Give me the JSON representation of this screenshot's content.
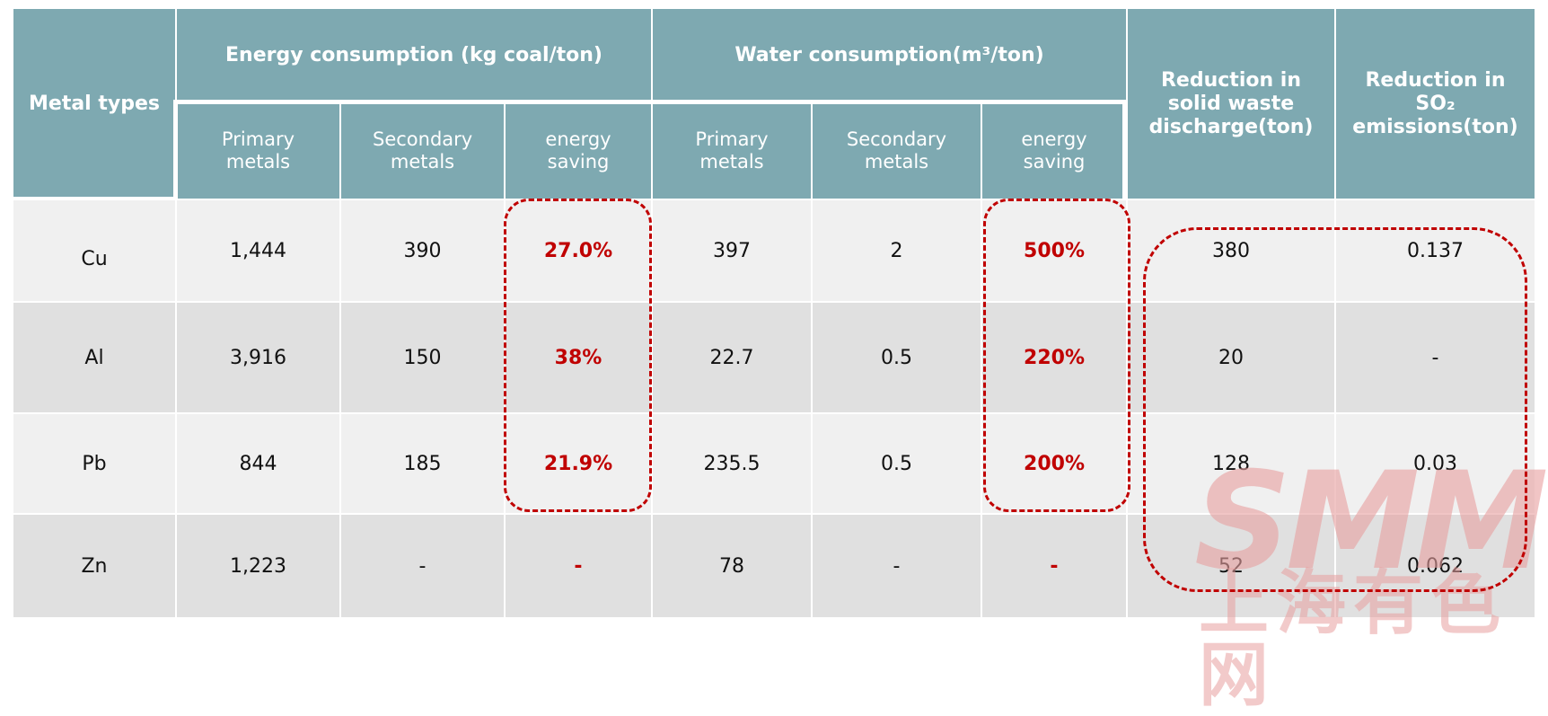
{
  "headers": {
    "metal_types": "Metal types",
    "energy_group": "Energy consumption  (kg coal/ton)",
    "water_group": "Water consumption(m³/ton)",
    "solid_waste": "Reduction in solid waste discharge(ton)",
    "so2": "Reduction in SO₂ emissions(ton)",
    "energy_sub": [
      "Primary metals",
      "Secondary metals",
      "energy saving"
    ],
    "water_sub": [
      "Primary metals",
      "Secondary metals",
      "energy saving"
    ]
  },
  "rows": [
    {
      "metal": "Cu",
      "energy_primary": "1,444",
      "energy_secondary": "390",
      "energy_saving": "27.0%",
      "water_primary": "397",
      "water_secondary": "2",
      "water_saving": "500%",
      "solid_waste": "380",
      "so2": "0.137"
    },
    {
      "metal": "Al",
      "energy_primary": "3,916",
      "energy_secondary": "150",
      "energy_saving": "38%",
      "water_primary": "22.7",
      "water_secondary": "0.5",
      "water_saving": "220%",
      "solid_waste": "20",
      "so2": "-"
    },
    {
      "metal": "Pb",
      "energy_primary": "844",
      "energy_secondary": "185",
      "energy_saving": "21.9%",
      "water_primary": "235.5",
      "water_secondary": "0.5",
      "water_saving": "200%",
      "solid_waste": "128",
      "so2": "0.03"
    },
    {
      "metal": "Zn",
      "energy_primary": "1,223",
      "energy_secondary": "-",
      "energy_saving": "-",
      "water_primary": "78",
      "water_secondary": "-",
      "water_saving": "-",
      "solid_waste": "52",
      "so2": "0.062"
    }
  ],
  "watermark": {
    "logo": "SMM",
    "text": "上海有色网"
  },
  "colors": {
    "header_bg": "#7ea9b1",
    "highlight": "#c00000",
    "row_light": "#f0f0f0",
    "row_dark": "#e0e0e0"
  }
}
